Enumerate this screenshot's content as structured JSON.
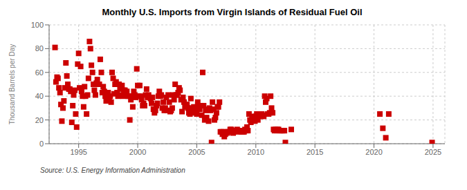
{
  "chart_data": {
    "type": "scatter",
    "title": "Monthly U.S. Imports from Virgin Islands of Residual Fuel Oil",
    "ylabel": "Thousand Barrels per Day",
    "source": "Source: U.S. Energy Information Administration",
    "color": "#cc0000",
    "marker": "square",
    "grid": true,
    "xlim": [
      1992.5,
      2026
    ],
    "ylim": [
      0,
      100
    ],
    "xticks": [
      1995,
      2000,
      2005,
      2010,
      2015,
      2020,
      2025
    ],
    "yticks": [
      0,
      20,
      40,
      60,
      80,
      100
    ],
    "x": [
      1993.0,
      1993.08,
      1993.17,
      1993.25,
      1993.33,
      1993.42,
      1993.5,
      1993.58,
      1993.67,
      1993.75,
      1993.83,
      1993.92,
      1994.0,
      1994.08,
      1994.17,
      1994.25,
      1994.33,
      1994.42,
      1994.5,
      1994.58,
      1994.67,
      1994.75,
      1994.83,
      1994.92,
      1995.0,
      1995.08,
      1995.17,
      1995.25,
      1995.33,
      1995.42,
      1995.5,
      1995.58,
      1995.67,
      1995.75,
      1995.83,
      1995.92,
      1996.0,
      1996.08,
      1996.17,
      1996.25,
      1996.33,
      1996.42,
      1996.5,
      1996.58,
      1996.67,
      1996.75,
      1996.83,
      1996.92,
      1997.0,
      1997.08,
      1997.17,
      1997.25,
      1997.33,
      1997.42,
      1997.5,
      1997.58,
      1997.67,
      1997.75,
      1997.83,
      1997.92,
      1998.0,
      1998.08,
      1998.17,
      1998.25,
      1998.33,
      1998.42,
      1998.5,
      1998.58,
      1998.67,
      1998.75,
      1998.83,
      1998.92,
      1999.0,
      1999.08,
      1999.17,
      1999.25,
      1999.33,
      1999.42,
      1999.5,
      1999.58,
      1999.67,
      1999.75,
      1999.83,
      1999.92,
      2000.0,
      2000.08,
      2000.17,
      2000.25,
      2000.33,
      2000.42,
      2000.5,
      2000.58,
      2000.67,
      2000.75,
      2000.83,
      2000.92,
      2001.0,
      2001.08,
      2001.17,
      2001.25,
      2001.33,
      2001.42,
      2001.5,
      2001.58,
      2001.67,
      2001.75,
      2001.83,
      2001.92,
      2002.0,
      2002.08,
      2002.17,
      2002.25,
      2002.33,
      2002.42,
      2002.5,
      2002.58,
      2002.67,
      2002.75,
      2002.83,
      2002.92,
      2003.0,
      2003.08,
      2003.17,
      2003.25,
      2003.33,
      2003.42,
      2003.5,
      2003.58,
      2003.67,
      2003.75,
      2003.83,
      2003.92,
      2004.0,
      2004.08,
      2004.17,
      2004.25,
      2004.33,
      2004.42,
      2004.5,
      2004.58,
      2004.67,
      2004.75,
      2004.83,
      2004.92,
      2005.0,
      2005.08,
      2005.17,
      2005.25,
      2005.33,
      2005.42,
      2005.5,
      2005.58,
      2005.67,
      2005.75,
      2005.83,
      2005.92,
      2006.0,
      2006.08,
      2006.17,
      2006.25,
      2006.33,
      2006.42,
      2006.5,
      2006.58,
      2006.67,
      2006.75,
      2006.83,
      2006.92,
      2007.0,
      2007.08,
      2007.17,
      2007.25,
      2007.33,
      2007.42,
      2007.5,
      2007.58,
      2007.67,
      2007.75,
      2007.83,
      2007.92,
      2008.0,
      2008.08,
      2008.17,
      2008.25,
      2008.33,
      2008.42,
      2008.5,
      2008.58,
      2008.67,
      2008.75,
      2008.83,
      2008.92,
      2009.0,
      2009.08,
      2009.17,
      2009.25,
      2009.33,
      2009.42,
      2009.5,
      2009.58,
      2009.67,
      2009.75,
      2009.83,
      2009.92,
      2010.0,
      2010.08,
      2010.17,
      2010.25,
      2010.33,
      2010.42,
      2010.5,
      2010.58,
      2010.67,
      2010.75,
      2010.83,
      2010.92,
      2011.0,
      2011.08,
      2011.17,
      2011.25,
      2011.33,
      2011.42,
      2011.5,
      2011.58,
      2011.67,
      2011.75,
      2011.83,
      2011.92,
      2012.0,
      2012.08,
      2012.17,
      2012.25,
      2012.33,
      2012.42,
      2012.5,
      2013.0,
      2020.5,
      2020.75,
      2021.0,
      2021.25,
      2024.92
    ],
    "values": [
      81,
      52,
      56,
      55,
      47,
      43,
      33,
      19,
      30,
      36,
      47,
      68,
      57,
      50,
      46,
      46,
      44,
      18,
      32,
      41,
      45,
      25,
      14,
      67,
      76,
      47,
      65,
      44,
      40,
      31,
      48,
      40,
      25,
      41,
      55,
      86,
      80,
      66,
      60,
      50,
      45,
      41,
      51,
      54,
      50,
      50,
      71,
      60,
      43,
      48,
      44,
      40,
      36,
      40,
      43,
      38,
      40,
      35,
      60,
      55,
      42,
      50,
      52,
      43,
      40,
      50,
      46,
      41,
      49,
      40,
      45,
      45,
      42,
      44,
      40,
      40,
      20,
      37,
      40,
      31,
      44,
      41,
      39,
      63,
      49,
      40,
      49,
      40,
      37,
      32,
      34,
      32,
      41,
      46,
      39,
      41,
      39,
      38,
      34,
      39,
      29,
      26,
      28,
      32,
      34,
      40,
      44,
      40,
      41,
      30,
      35,
      28,
      30,
      39,
      28,
      41,
      35,
      27,
      28,
      30,
      41,
      37,
      50,
      41,
      41,
      43,
      47,
      45,
      37,
      27,
      39,
      35,
      31,
      33,
      33,
      30,
      26,
      25,
      38,
      30,
      28,
      31,
      26,
      28,
      25,
      35,
      32,
      29,
      32,
      24,
      60,
      32,
      20,
      28,
      22,
      29,
      19,
      30,
      28,
      1,
      35,
      29,
      20,
      22,
      26,
      31,
      31,
      35,
      10,
      10,
      8,
      10,
      6,
      8,
      10,
      9,
      10,
      10,
      12,
      12,
      10,
      9,
      10,
      11,
      11,
      12,
      11,
      10,
      11,
      10,
      10,
      10,
      10,
      12,
      11,
      14,
      11,
      25,
      20,
      18,
      23,
      20,
      22,
      19,
      23,
      25,
      20,
      24,
      25,
      23,
      25,
      24,
      23,
      40,
      35,
      38,
      25,
      25,
      26,
      40,
      30,
      26,
      12,
      11,
      12,
      11,
      12,
      12,
      11,
      11,
      11,
      11,
      11,
      11,
      1,
      12,
      25,
      13,
      5,
      25,
      1
    ]
  }
}
